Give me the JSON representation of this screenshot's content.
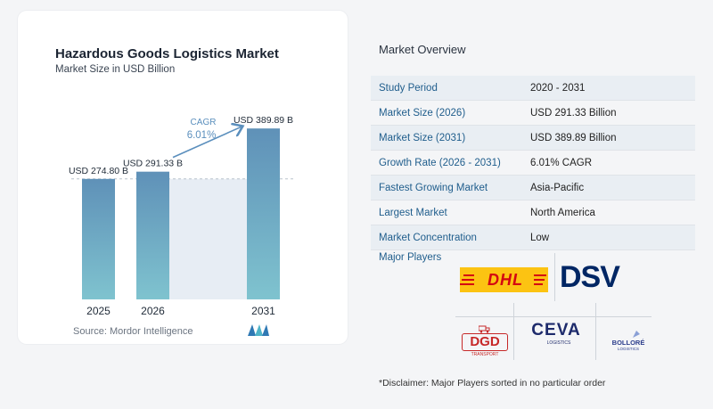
{
  "chart_data": {
    "type": "bar",
    "title": "Hazardous Goods Logistics Market",
    "subtitle": "Market Size in USD Billion",
    "categories": [
      "2025",
      "2026",
      "2031"
    ],
    "values": [
      274.8,
      291.33,
      389.89
    ],
    "value_labels": [
      "USD 274.80 B",
      "USD 291.33 B",
      "USD 389.89 B"
    ],
    "cagr_label": "CAGR",
    "cagr_value": "6.01%",
    "colors": {
      "bar_top": "#5f91b8",
      "bar_bottom": "#7fc3cf",
      "band": "#e7edf4",
      "arrow": "#5b8fbd",
      "dashed": "#b9c2cc"
    }
  },
  "source_text": "Source:  Mordor Intelligence",
  "overview": {
    "title": "Market Overview",
    "rows": [
      {
        "label": "Study Period",
        "value": "2020 - 2031"
      },
      {
        "label": "Market Size (2026)",
        "value": "USD 291.33 Billion"
      },
      {
        "label": "Market Size (2031)",
        "value": "USD 389.89 Billion"
      },
      {
        "label": "Growth Rate (2026 - 2031)",
        "value": "6.01% CAGR"
      },
      {
        "label": "Fastest Growing Market",
        "value": "Asia-Pacific"
      },
      {
        "label": "Largest Market",
        "value": "North America"
      },
      {
        "label": "Market Concentration",
        "value": "Low"
      }
    ]
  },
  "players": {
    "title": "Major Players",
    "dhl": "DHL",
    "dsv": "DSV",
    "dgd": "DGD",
    "dgd_sub": "TRANSPORT",
    "ceva": "CEVA",
    "ceva_sub": "LOGISTICS",
    "bollore": "BOLLORÉ",
    "bollore_sub": "LOGISTICS"
  },
  "disclaimer": "*Disclaimer: Major Players sorted in no particular order"
}
